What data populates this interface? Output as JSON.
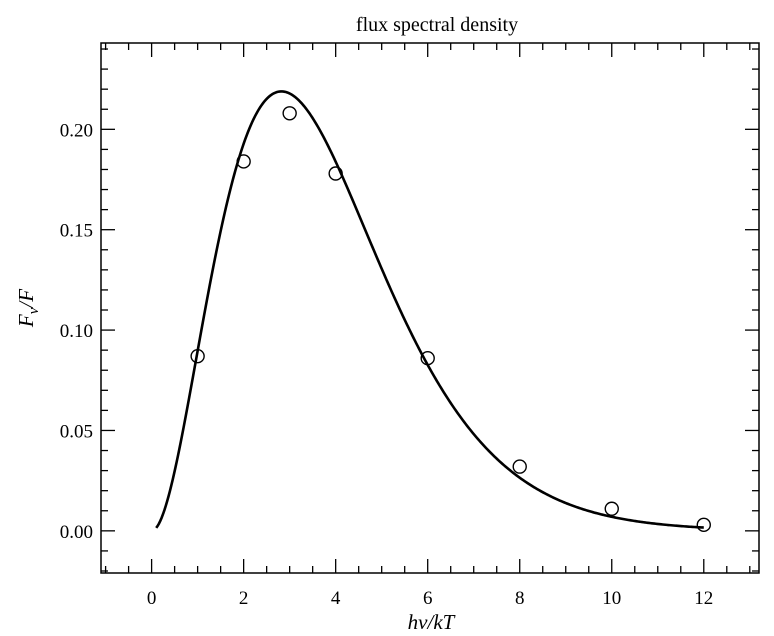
{
  "chart_data": {
    "type": "line",
    "title": "flux spectral density",
    "xlabel": "hν/kT",
    "ylabel_main": "F",
    "ylabel_sub": "ν",
    "ylabel_den": "/F",
    "xlim": [
      -1.1,
      13.2
    ],
    "ylim": [
      -0.021,
      0.243
    ],
    "x_ticks": [
      0,
      2,
      4,
      6,
      8,
      10,
      12
    ],
    "x_tick_labels": [
      "0",
      "2",
      "4",
      "6",
      "8",
      "10",
      "12"
    ],
    "y_ticks": [
      0.0,
      0.05,
      0.1,
      0.15,
      0.2
    ],
    "y_tick_labels": [
      "0.00",
      "0.05",
      "0.10",
      "0.15",
      "0.20"
    ],
    "grid": false,
    "curve": {
      "function": "planck_normalized",
      "x_start": 0.1,
      "x_end": 12.0
    },
    "points": {
      "x": [
        1,
        2,
        3,
        4,
        6,
        8,
        10,
        12
      ],
      "y": [
        0.087,
        0.184,
        0.208,
        0.178,
        0.086,
        0.032,
        0.011,
        0.003
      ]
    },
    "line_color": "#000000",
    "marker_color": "#000000"
  }
}
